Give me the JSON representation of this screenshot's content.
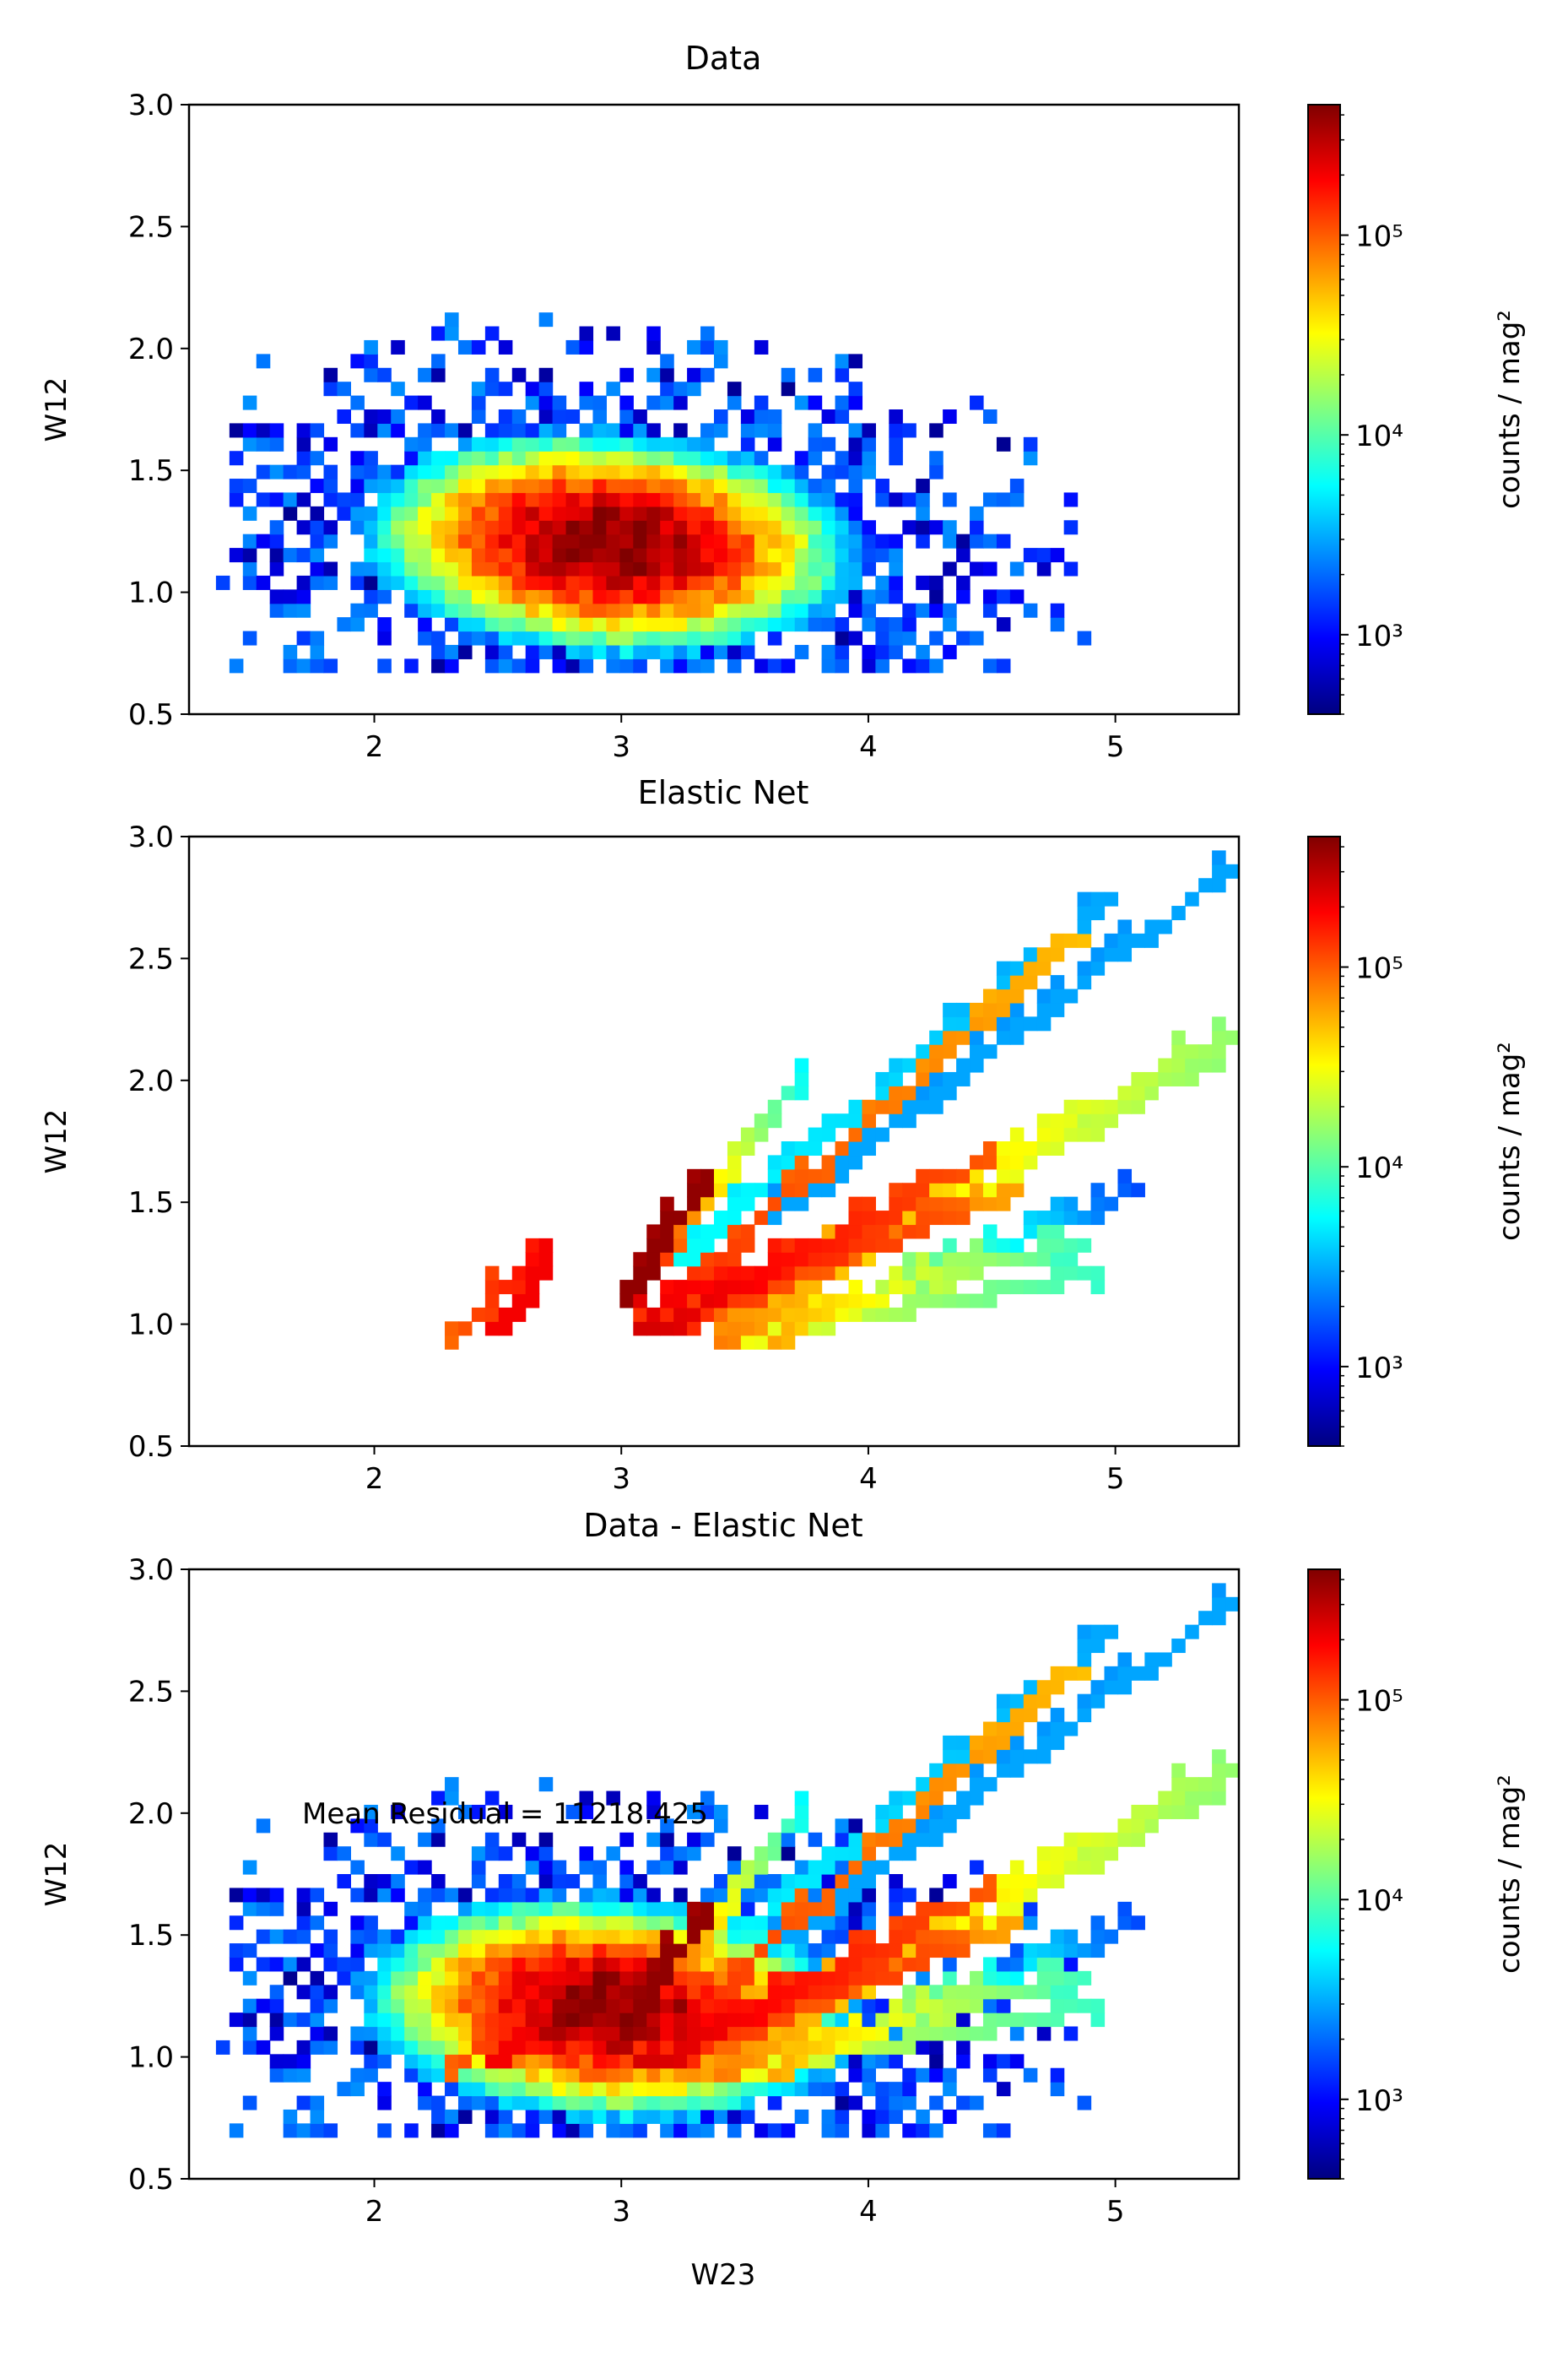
{
  "figure": {
    "colormap": "jet",
    "colormap_stops": [
      "#000080",
      "#0000ff",
      "#0080ff",
      "#00ffff",
      "#80ff80",
      "#ffff00",
      "#ff8000",
      "#ff0000",
      "#800000"
    ]
  },
  "chart_data": [
    {
      "type": "heatmap",
      "title": "Data",
      "xlabel": "",
      "ylabel": "W12",
      "xlim": [
        1.25,
        5.5
      ],
      "ylim": [
        0.5,
        3.0
      ],
      "xticks": [
        "2",
        "3",
        "4",
        "5"
      ],
      "yticks": [
        "0.5",
        "1.0",
        "1.5",
        "2.0",
        "2.5",
        "3.0"
      ],
      "colorbar": {
        "label": "counts / mag²",
        "scale": "log",
        "range": [
          400,
          450000
        ],
        "ticks": [
          "10³",
          "10⁴",
          "10⁵"
        ]
      },
      "density_model": {
        "peak": [
          2.95,
          1.2
        ],
        "peak_counts": 450000
      },
      "annotation": ""
    },
    {
      "type": "heatmap",
      "title": "Elastic Net",
      "xlabel": "",
      "ylabel": "W12",
      "xlim": [
        1.25,
        5.5
      ],
      "ylim": [
        0.5,
        3.0
      ],
      "xticks": [
        "2",
        "3",
        "4",
        "5"
      ],
      "yticks": [
        "0.5",
        "1.0",
        "1.5",
        "2.0",
        "2.5",
        "3.0"
      ],
      "colorbar": {
        "label": "counts / mag²",
        "scale": "log",
        "range": [
          400,
          450000
        ],
        "ticks": [
          "10³",
          "10⁴",
          "10⁵"
        ]
      },
      "tracks": [
        {
          "from": [
            2.3,
            0.92
          ],
          "to": [
            2.72,
            1.32
          ],
          "counts_from": 90000,
          "counts_to": 200000
        },
        {
          "from": [
            2.5,
            0.95
          ],
          "to": [
            2.7,
            1.25
          ],
          "counts_from": 200000,
          "counts_to": 200000
        },
        {
          "from": [
            3.0,
            1.05
          ],
          "to": [
            3.75,
            2.05
          ],
          "counts_from": 300000,
          "counts_to": 5000
        },
        {
          "from": [
            3.2,
            1.25
          ],
          "to": [
            5.0,
            2.75
          ],
          "counts_from": 6000,
          "counts_to": 3000
        },
        {
          "from": [
            3.3,
            1.2
          ],
          "to": [
            5.5,
            2.88
          ],
          "counts_from": 3000,
          "counts_to": 3000
        },
        {
          "from": [
            3.1,
            1.0
          ],
          "to": [
            4.85,
            2.6
          ],
          "counts_from": 150000,
          "counts_to": 50000
        },
        {
          "from": [
            3.3,
            1.0
          ],
          "to": [
            5.5,
            2.2
          ],
          "counts_from": 100000,
          "counts_to": 15000
        },
        {
          "from": [
            3.4,
            0.95
          ],
          "to": [
            5.4,
            2.1
          ],
          "counts_from": 70000,
          "counts_to": 15000
        },
        {
          "from": [
            3.1,
            0.95
          ],
          "to": [
            4.5,
            1.7
          ],
          "counts_from": 250000,
          "counts_to": 100000
        },
        {
          "from": [
            3.2,
            1.0
          ],
          "to": [
            4.6,
            1.55
          ],
          "counts_from": 150000,
          "counts_to": 60000
        },
        {
          "from": [
            3.6,
            0.95
          ],
          "to": [
            5.1,
            1.55
          ],
          "counts_from": 60000,
          "counts_to": 1500
        },
        {
          "from": [
            3.4,
            0.95
          ],
          "to": [
            4.9,
            1.35
          ],
          "counts_from": 80000,
          "counts_to": 8000
        },
        {
          "from": [
            3.5,
            0.93
          ],
          "to": [
            4.95,
            1.2
          ],
          "counts_from": 30000,
          "counts_to": 8000
        },
        {
          "from": [
            3.2,
            1.1
          ],
          "to": [
            4.4,
            1.45
          ],
          "counts_from": 200000,
          "counts_to": 100000
        },
        {
          "from": [
            3.0,
            1.1
          ],
          "to": [
            3.35,
            1.6
          ],
          "counts_from": 400000,
          "counts_to": 400000
        }
      ],
      "annotation": ""
    },
    {
      "type": "heatmap",
      "title": "Data - Elastic Net",
      "xlabel": "W23",
      "ylabel": "W12",
      "xlim": [
        1.25,
        5.5
      ],
      "ylim": [
        0.5,
        3.0
      ],
      "xticks": [
        "2",
        "3",
        "4",
        "5"
      ],
      "yticks": [
        "0.5",
        "1.0",
        "1.5",
        "2.0",
        "2.5",
        "3.0"
      ],
      "colorbar": {
        "label": "counts / mag²",
        "scale": "log",
        "range": [
          400,
          450000
        ],
        "ticks": [
          "10³",
          "10⁴",
          "10⁵"
        ]
      },
      "annotation": "Mean Residual = 11218.425"
    }
  ]
}
